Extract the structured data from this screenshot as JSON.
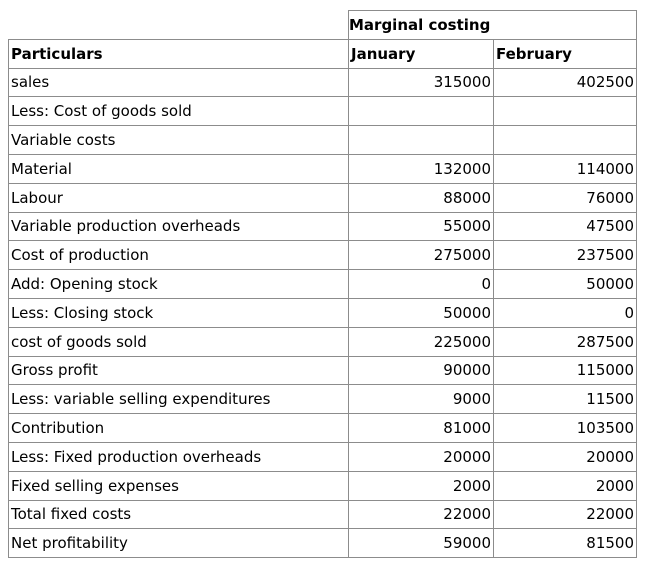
{
  "title": "Marginal costing",
  "headers": {
    "particulars": "Particulars",
    "january": "January",
    "february": "February"
  },
  "rows": [
    {
      "label": "sales",
      "january": "315000",
      "february": "402500"
    },
    {
      "label": "Less: Cost of goods sold",
      "january": "",
      "february": ""
    },
    {
      "label": "Variable costs",
      "january": "",
      "february": ""
    },
    {
      "label": "Material",
      "january": "132000",
      "february": "114000"
    },
    {
      "label": "Labour",
      "january": "88000",
      "february": "76000"
    },
    {
      "label": "Variable production overheads",
      "january": "55000",
      "february": "47500"
    },
    {
      "label": "Cost of production",
      "january": "275000",
      "february": "237500"
    },
    {
      "label": "Add: Opening stock",
      "january": "0",
      "february": "50000"
    },
    {
      "label": "Less: Closing stock",
      "january": "50000",
      "february": "0"
    },
    {
      "label": "cost of goods sold",
      "january": "225000",
      "february": "287500"
    },
    {
      "label": "Gross profit",
      "january": "90000",
      "february": "115000"
    },
    {
      "label": "Less: variable selling expenditures",
      "january": "9000",
      "february": "11500"
    },
    {
      "label": "Contribution",
      "january": "81000",
      "february": "103500"
    },
    {
      "label": "Less: Fixed production overheads",
      "january": "20000",
      "february": "20000"
    },
    {
      "label": "Fixed selling expenses",
      "january": "2000",
      "february": "2000"
    },
    {
      "label": "Total fixed costs",
      "january": "22000",
      "february": "22000"
    },
    {
      "label": "Net profitability",
      "january": "59000",
      "february": "81500"
    }
  ]
}
